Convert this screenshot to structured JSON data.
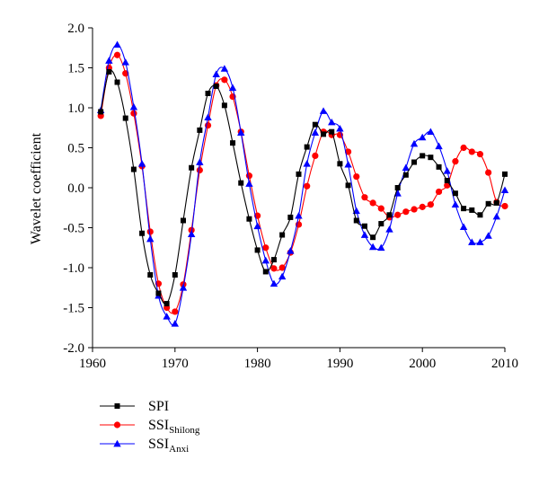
{
  "chart_data": {
    "type": "line",
    "title": "",
    "xlabel": "",
    "ylabel": "Wavelet coefficient",
    "xlim": [
      1960,
      2010
    ],
    "ylim": [
      -2.0,
      2.0
    ],
    "x_ticks": [
      1960,
      1970,
      1980,
      1990,
      2000,
      2010
    ],
    "y_ticks": [
      "2.0",
      "1.5",
      "1.0",
      "0.5",
      "0.0",
      "-0.5",
      "-1.0",
      "-1.5",
      "-2.0"
    ],
    "grid": false,
    "legend_position": "bottom-left",
    "x": [
      1961,
      1962,
      1963,
      1964,
      1965,
      1966,
      1967,
      1968,
      1969,
      1970,
      1971,
      1972,
      1973,
      1974,
      1975,
      1976,
      1977,
      1978,
      1979,
      1980,
      1981,
      1982,
      1983,
      1984,
      1985,
      1986,
      1987,
      1988,
      1989,
      1990,
      1991,
      1992,
      1993,
      1994,
      1995,
      1996,
      1997,
      1998,
      1999,
      2000,
      2001,
      2002,
      2003,
      2004,
      2005,
      2006,
      2007,
      2008,
      2009,
      2010
    ],
    "series": [
      {
        "name": "SPI",
        "name_sub": "",
        "color": "#000000",
        "marker": "square",
        "values": [
          0.95,
          1.45,
          1.32,
          0.87,
          0.23,
          -0.57,
          -1.09,
          -1.32,
          -1.45,
          -1.09,
          -0.41,
          0.25,
          0.72,
          1.18,
          1.27,
          1.03,
          0.56,
          0.06,
          -0.39,
          -0.78,
          -1.05,
          -0.9,
          -0.59,
          -0.37,
          0.17,
          0.51,
          0.79,
          0.67,
          0.7,
          0.3,
          0.03,
          -0.41,
          -0.48,
          -0.62,
          -0.45,
          -0.34,
          0.0,
          0.16,
          0.32,
          0.4,
          0.38,
          0.26,
          0.09,
          -0.07,
          -0.26,
          -0.28,
          -0.34,
          -0.2,
          -0.19,
          0.17
        ]
      },
      {
        "name": "SSI",
        "name_sub": "Shilong",
        "color": "#ff0000",
        "marker": "circle",
        "values": [
          0.9,
          1.5,
          1.66,
          1.43,
          0.93,
          0.27,
          -0.55,
          -1.2,
          -1.5,
          -1.55,
          -1.21,
          -0.53,
          0.22,
          0.78,
          1.28,
          1.35,
          1.14,
          0.7,
          0.15,
          -0.35,
          -0.75,
          -1.01,
          -1.0,
          -0.81,
          -0.46,
          0.02,
          0.4,
          0.7,
          0.66,
          0.66,
          0.45,
          0.14,
          -0.12,
          -0.19,
          -0.26,
          -0.37,
          -0.34,
          -0.3,
          -0.27,
          -0.24,
          -0.21,
          -0.05,
          0.03,
          0.33,
          0.5,
          0.45,
          0.42,
          0.19,
          -0.18,
          -0.23
        ]
      },
      {
        "name": "SSI",
        "name_sub": "Anxi",
        "color": "#0000ff",
        "marker": "triangle",
        "values": [
          0.97,
          1.59,
          1.79,
          1.57,
          1.01,
          0.3,
          -0.64,
          -1.35,
          -1.61,
          -1.7,
          -1.25,
          -0.58,
          0.32,
          0.88,
          1.42,
          1.49,
          1.25,
          0.69,
          0.05,
          -0.48,
          -0.91,
          -1.2,
          -1.11,
          -0.79,
          -0.35,
          0.3,
          0.69,
          0.96,
          0.82,
          0.74,
          0.29,
          -0.29,
          -0.59,
          -0.74,
          -0.75,
          -0.52,
          -0.07,
          0.25,
          0.55,
          0.63,
          0.7,
          0.52,
          0.21,
          -0.21,
          -0.49,
          -0.68,
          -0.68,
          -0.6,
          -0.36,
          -0.03
        ]
      }
    ]
  }
}
